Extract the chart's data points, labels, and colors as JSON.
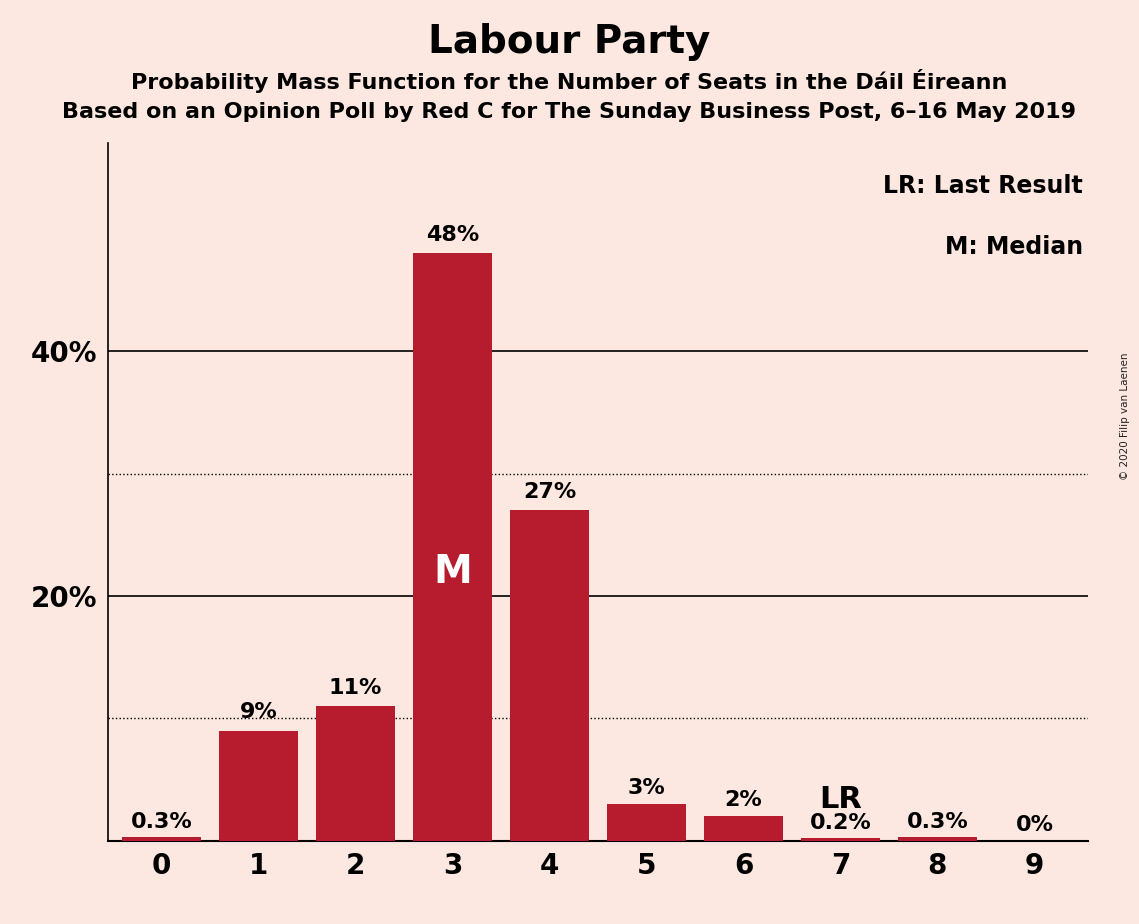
{
  "title": "Labour Party",
  "subtitle1": "Probability Mass Function for the Number of Seats in the Dáil Éireann",
  "subtitle2": "Based on an Opinion Poll by Red C for The Sunday Business Post, 6–16 May 2019",
  "copyright": "© 2020 Filip van Laenen",
  "categories": [
    0,
    1,
    2,
    3,
    4,
    5,
    6,
    7,
    8,
    9
  ],
  "values": [
    0.3,
    9,
    11,
    48,
    27,
    3,
    2,
    0.2,
    0.3,
    0
  ],
  "labels": [
    "0.3%",
    "9%",
    "11%",
    "48%",
    "27%",
    "3%",
    "2%",
    "0.2%",
    "0.3%",
    "0%"
  ],
  "bar_color": "#b71c2e",
  "background_color": "#fce8e0",
  "median_bar": 3,
  "median_label": "M",
  "lr_bar": 7,
  "lr_label": "LR",
  "legend_lr": "LR: Last Result",
  "legend_m": "M: Median",
  "ytick_positions": [
    20,
    40
  ],
  "ytick_labels": [
    "20%",
    "40%"
  ],
  "dotted_lines": [
    10,
    30
  ],
  "solid_lines": [
    20,
    40
  ],
  "ylim": [
    0,
    57
  ],
  "xlim": [
    -0.55,
    9.55
  ],
  "title_fontsize": 28,
  "subtitle_fontsize": 16,
  "label_fontsize": 16,
  "tick_fontsize": 20,
  "legend_fontsize": 17,
  "median_fontsize": 28,
  "lr_fontsize": 22,
  "bar_width": 0.82
}
